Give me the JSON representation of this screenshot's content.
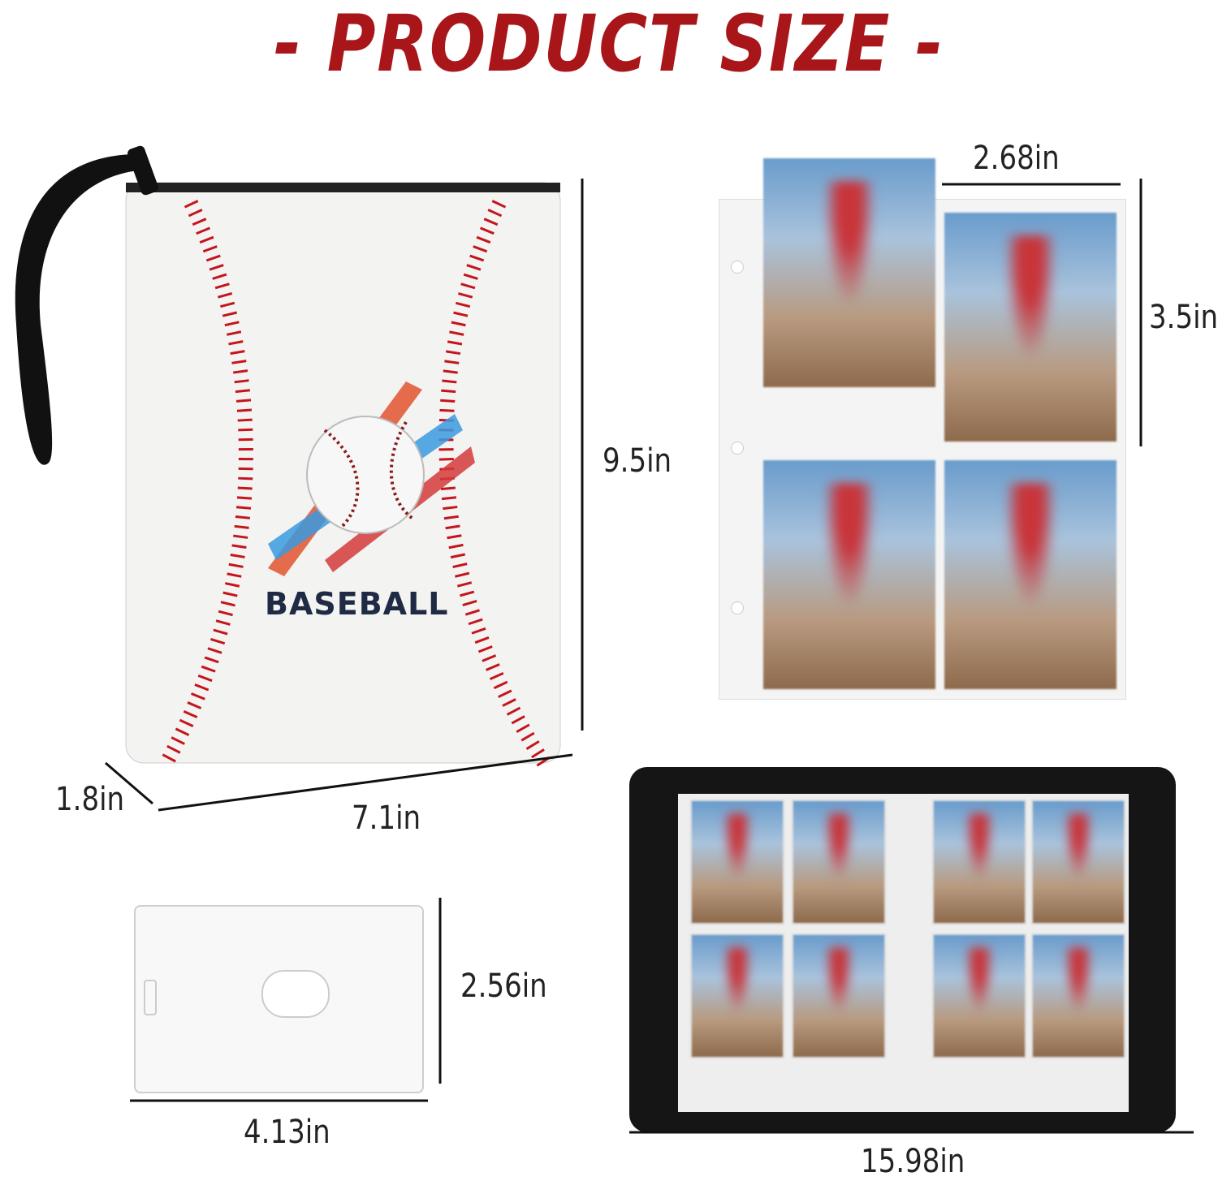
{
  "title": "- PRODUCT SIZE -",
  "binder": {
    "cover_text": "BASEBALL",
    "height_label": "9.5in",
    "width_label": "7.1in",
    "depth_label": "1.8in"
  },
  "pages": {
    "card_width_label": "2.68in",
    "card_height_label": "3.5in"
  },
  "card_holder": {
    "height_label": "2.56in",
    "width_label": "4.13in"
  },
  "open_binder": {
    "width_label": "15.98in"
  },
  "colors": {
    "title": "#a8161a",
    "stitch": "#c4151c",
    "cover_text": "#1f2a44"
  }
}
